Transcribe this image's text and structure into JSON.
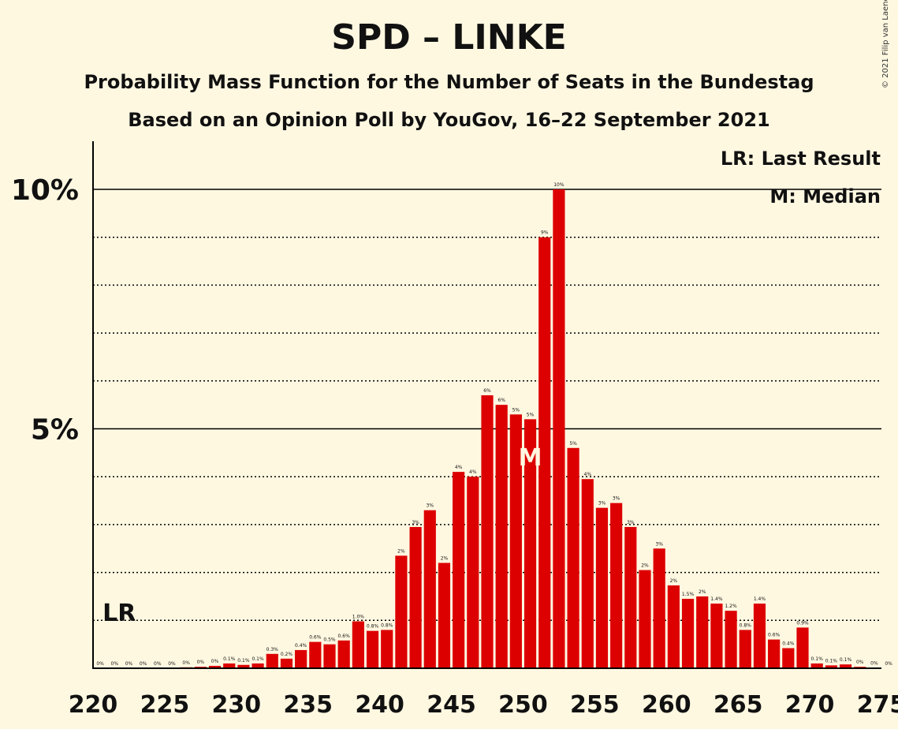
{
  "header": {
    "title": "SPD – LINKE",
    "subtitle1": "Probability Mass Function for the Number of Seats in the Bundestag",
    "subtitle2": "Based on an Opinion Poll by YouGov, 16–22 September 2021",
    "copyright": "© 2021 Filip van Laenen"
  },
  "colors": {
    "background": "#fff8e1",
    "bar": "#dd0000",
    "axis": "#000000"
  },
  "chart_data": {
    "type": "bar",
    "xlim": [
      220,
      275
    ],
    "ylim": [
      0,
      11
    ],
    "y_major_ticks": [
      5,
      10
    ],
    "y_tick_labels": [
      "5%",
      "10%"
    ],
    "y_minor_gridlines": [
      1,
      2,
      3,
      4,
      6,
      7,
      8,
      9
    ],
    "x_tick_values": [
      220,
      225,
      230,
      235,
      240,
      245,
      250,
      255,
      260,
      265,
      270,
      275
    ],
    "x_tick_labels": [
      "220",
      "225",
      "230",
      "235",
      "240",
      "245",
      "250",
      "255",
      "260",
      "265",
      "270",
      "275"
    ],
    "legend": [
      "LR: Last Result",
      "M: Median"
    ],
    "last_result": {
      "seat": 222,
      "label": "LR"
    },
    "median": {
      "seat": 251,
      "label": "M"
    },
    "bars": [
      {
        "seat": 221,
        "value": 0,
        "label": "0%"
      },
      {
        "seat": 222,
        "value": 0,
        "label": "0%"
      },
      {
        "seat": 223,
        "value": 0,
        "label": "0%"
      },
      {
        "seat": 224,
        "value": 0,
        "label": "0%"
      },
      {
        "seat": 225,
        "value": 0,
        "label": "0%"
      },
      {
        "seat": 226,
        "value": 0,
        "label": "0%"
      },
      {
        "seat": 227,
        "value": 0.02,
        "label": "0%"
      },
      {
        "seat": 228,
        "value": 0.03,
        "label": "0%"
      },
      {
        "seat": 229,
        "value": 0.05,
        "label": "0%"
      },
      {
        "seat": 230,
        "value": 0.1,
        "label": "0.1%"
      },
      {
        "seat": 231,
        "value": 0.07,
        "label": "0.1%"
      },
      {
        "seat": 232,
        "value": 0.1,
        "label": "0.1%"
      },
      {
        "seat": 233,
        "value": 0.3,
        "label": "0.3%"
      },
      {
        "seat": 234,
        "value": 0.2,
        "label": "0.2%"
      },
      {
        "seat": 235,
        "value": 0.38,
        "label": "0.4%"
      },
      {
        "seat": 236,
        "value": 0.55,
        "label": "0.6%"
      },
      {
        "seat": 237,
        "value": 0.5,
        "label": "0.5%"
      },
      {
        "seat": 238,
        "value": 0.58,
        "label": "0.6%"
      },
      {
        "seat": 239,
        "value": 0.98,
        "label": "1.0%"
      },
      {
        "seat": 240,
        "value": 0.78,
        "label": "0.8%"
      },
      {
        "seat": 241,
        "value": 0.8,
        "label": "0.8%"
      },
      {
        "seat": 242,
        "value": 2.35,
        "label": "2%"
      },
      {
        "seat": 243,
        "value": 2.95,
        "label": "3%"
      },
      {
        "seat": 244,
        "value": 3.3,
        "label": "3%"
      },
      {
        "seat": 245,
        "value": 2.2,
        "label": "2%"
      },
      {
        "seat": 246,
        "value": 4.1,
        "label": "4%"
      },
      {
        "seat": 247,
        "value": 4.0,
        "label": "4%"
      },
      {
        "seat": 248,
        "value": 5.7,
        "label": "6%"
      },
      {
        "seat": 249,
        "value": 5.5,
        "label": "6%"
      },
      {
        "seat": 250,
        "value": 5.3,
        "label": "5%"
      },
      {
        "seat": 251,
        "value": 5.2,
        "label": "5%"
      },
      {
        "seat": 252,
        "value": 9.0,
        "label": "9%"
      },
      {
        "seat": 253,
        "value": 10.0,
        "label": "10%"
      },
      {
        "seat": 254,
        "value": 4.6,
        "label": "5%"
      },
      {
        "seat": 255,
        "value": 3.95,
        "label": "4%"
      },
      {
        "seat": 256,
        "value": 3.35,
        "label": "3%"
      },
      {
        "seat": 257,
        "value": 3.45,
        "label": "3%"
      },
      {
        "seat": 258,
        "value": 2.95,
        "label": "3%"
      },
      {
        "seat": 259,
        "value": 2.05,
        "label": "2%"
      },
      {
        "seat": 260,
        "value": 2.5,
        "label": "3%"
      },
      {
        "seat": 261,
        "value": 1.73,
        "label": "2%"
      },
      {
        "seat": 262,
        "value": 1.45,
        "label": "1.5%"
      },
      {
        "seat": 263,
        "value": 1.5,
        "label": "2%"
      },
      {
        "seat": 264,
        "value": 1.35,
        "label": "1.4%"
      },
      {
        "seat": 265,
        "value": 1.2,
        "label": "1.2%"
      },
      {
        "seat": 266,
        "value": 0.8,
        "label": "0.8%"
      },
      {
        "seat": 267,
        "value": 1.35,
        "label": "1.4%"
      },
      {
        "seat": 268,
        "value": 0.6,
        "label": "0.6%"
      },
      {
        "seat": 269,
        "value": 0.42,
        "label": "0.4%"
      },
      {
        "seat": 270,
        "value": 0.85,
        "label": "0.9%"
      },
      {
        "seat": 271,
        "value": 0.1,
        "label": "0.1%"
      },
      {
        "seat": 272,
        "value": 0.06,
        "label": "0.1%"
      },
      {
        "seat": 273,
        "value": 0.08,
        "label": "0.1%"
      },
      {
        "seat": 274,
        "value": 0.03,
        "label": "0%"
      },
      {
        "seat": 275,
        "value": 0.01,
        "label": "0%"
      },
      {
        "seat": 276,
        "value": 0,
        "label": "0%"
      }
    ]
  }
}
